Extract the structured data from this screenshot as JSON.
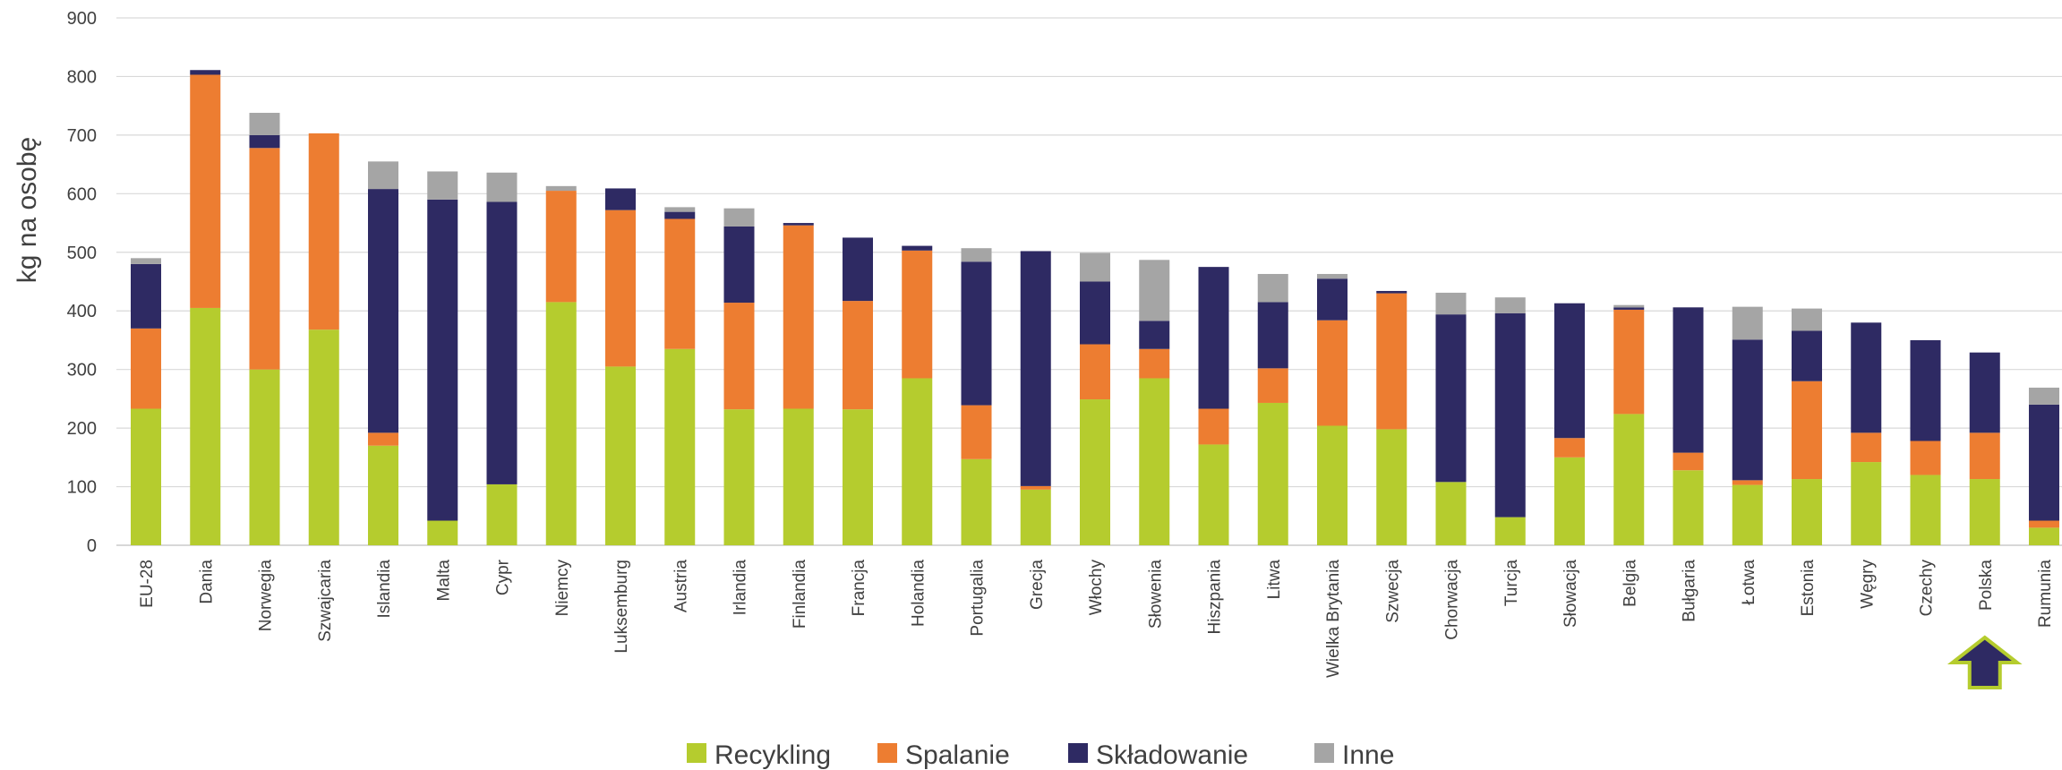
{
  "chart_data": {
    "type": "bar",
    "stacked": true,
    "ylabel": "kg na osobę",
    "xlabel": "",
    "ylim": [
      0,
      900
    ],
    "yticks": [
      0,
      100,
      200,
      300,
      400,
      500,
      600,
      700,
      800,
      900
    ],
    "grid": true,
    "legend_position": "bottom",
    "highlight": {
      "category": "Polska",
      "marker": "up-arrow",
      "fill": "#2e2a63",
      "stroke": "#b5cc2e"
    },
    "categories": [
      "EU-28",
      "Dania",
      "Norwegia",
      "Szwajcaria",
      "Islandia",
      "Malta",
      "Cypr",
      "Niemcy",
      "Luksemburg",
      "Austria",
      "Irlandia",
      "Finlandia",
      "Francja",
      "Holandia",
      "Portugalia",
      "Grecja",
      "Włochy",
      "Słowenia",
      "Hiszpania",
      "Litwa",
      "Wielka Brytania",
      "Szwecja",
      "Chorwacja",
      "Turcja",
      "Słowacja",
      "Belgia",
      "Bułgaria",
      "Łotwa",
      "Estonia",
      "Węgry",
      "Czechy",
      "Polska",
      "Rumunia"
    ],
    "series": [
      {
        "name": "Recykling",
        "color": "#b5cc2e",
        "values": [
          233,
          405,
          300,
          368,
          170,
          42,
          104,
          415,
          305,
          335,
          232,
          233,
          232,
          285,
          147,
          95,
          249,
          285,
          172,
          243,
          204,
          198,
          108,
          48,
          150,
          224,
          128,
          103,
          113,
          142,
          120,
          113,
          30
        ]
      },
      {
        "name": "Spalanie",
        "color": "#ed7d31",
        "values": [
          137,
          398,
          378,
          335,
          22,
          0,
          0,
          190,
          267,
          222,
          182,
          313,
          185,
          218,
          92,
          6,
          94,
          50,
          61,
          59,
          180,
          232,
          0,
          0,
          33,
          178,
          30,
          8,
          167,
          50,
          58,
          79,
          12
        ]
      },
      {
        "name": "Składowanie",
        "color": "#2e2a63",
        "values": [
          110,
          8,
          22,
          0,
          416,
          548,
          482,
          0,
          37,
          12,
          130,
          4,
          108,
          8,
          245,
          401,
          107,
          48,
          242,
          113,
          71,
          4,
          286,
          348,
          230,
          4,
          248,
          240,
          86,
          188,
          172,
          137,
          198
        ]
      },
      {
        "name": "Inne",
        "color": "#a5a5a5",
        "values": [
          10,
          0,
          38,
          0,
          47,
          48,
          50,
          8,
          0,
          8,
          31,
          0,
          0,
          0,
          23,
          0,
          49,
          104,
          0,
          48,
          8,
          0,
          37,
          27,
          0,
          4,
          0,
          56,
          38,
          0,
          0,
          0,
          29
        ]
      }
    ]
  }
}
